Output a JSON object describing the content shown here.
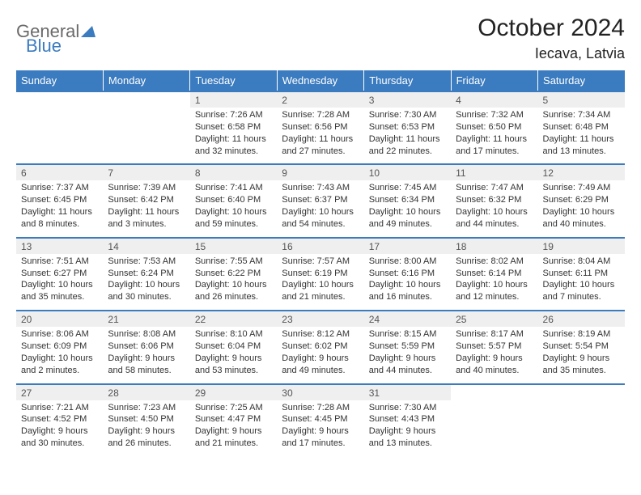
{
  "logo": {
    "text1": "General",
    "text2": "Blue"
  },
  "title": "October 2024",
  "location": "Iecava, Latvia",
  "colors": {
    "header_bg": "#3b7bbf",
    "header_text": "#ffffff",
    "daynum_bg": "#efefef",
    "border": "#3b7bbf",
    "logo_gray": "#6a6a6a",
    "logo_blue": "#3b7bbf"
  },
  "weekdays": [
    "Sunday",
    "Monday",
    "Tuesday",
    "Wednesday",
    "Thursday",
    "Friday",
    "Saturday"
  ],
  "weeks": [
    {
      "nums": [
        "",
        "",
        "1",
        "2",
        "3",
        "4",
        "5"
      ],
      "cells": [
        "",
        "",
        "Sunrise: 7:26 AM\nSunset: 6:58 PM\nDaylight: 11 hours and 32 minutes.",
        "Sunrise: 7:28 AM\nSunset: 6:56 PM\nDaylight: 11 hours and 27 minutes.",
        "Sunrise: 7:30 AM\nSunset: 6:53 PM\nDaylight: 11 hours and 22 minutes.",
        "Sunrise: 7:32 AM\nSunset: 6:50 PM\nDaylight: 11 hours and 17 minutes.",
        "Sunrise: 7:34 AM\nSunset: 6:48 PM\nDaylight: 11 hours and 13 minutes."
      ]
    },
    {
      "nums": [
        "6",
        "7",
        "8",
        "9",
        "10",
        "11",
        "12"
      ],
      "cells": [
        "Sunrise: 7:37 AM\nSunset: 6:45 PM\nDaylight: 11 hours and 8 minutes.",
        "Sunrise: 7:39 AM\nSunset: 6:42 PM\nDaylight: 11 hours and 3 minutes.",
        "Sunrise: 7:41 AM\nSunset: 6:40 PM\nDaylight: 10 hours and 59 minutes.",
        "Sunrise: 7:43 AM\nSunset: 6:37 PM\nDaylight: 10 hours and 54 minutes.",
        "Sunrise: 7:45 AM\nSunset: 6:34 PM\nDaylight: 10 hours and 49 minutes.",
        "Sunrise: 7:47 AM\nSunset: 6:32 PM\nDaylight: 10 hours and 44 minutes.",
        "Sunrise: 7:49 AM\nSunset: 6:29 PM\nDaylight: 10 hours and 40 minutes."
      ]
    },
    {
      "nums": [
        "13",
        "14",
        "15",
        "16",
        "17",
        "18",
        "19"
      ],
      "cells": [
        "Sunrise: 7:51 AM\nSunset: 6:27 PM\nDaylight: 10 hours and 35 minutes.",
        "Sunrise: 7:53 AM\nSunset: 6:24 PM\nDaylight: 10 hours and 30 minutes.",
        "Sunrise: 7:55 AM\nSunset: 6:22 PM\nDaylight: 10 hours and 26 minutes.",
        "Sunrise: 7:57 AM\nSunset: 6:19 PM\nDaylight: 10 hours and 21 minutes.",
        "Sunrise: 8:00 AM\nSunset: 6:16 PM\nDaylight: 10 hours and 16 minutes.",
        "Sunrise: 8:02 AM\nSunset: 6:14 PM\nDaylight: 10 hours and 12 minutes.",
        "Sunrise: 8:04 AM\nSunset: 6:11 PM\nDaylight: 10 hours and 7 minutes."
      ]
    },
    {
      "nums": [
        "20",
        "21",
        "22",
        "23",
        "24",
        "25",
        "26"
      ],
      "cells": [
        "Sunrise: 8:06 AM\nSunset: 6:09 PM\nDaylight: 10 hours and 2 minutes.",
        "Sunrise: 8:08 AM\nSunset: 6:06 PM\nDaylight: 9 hours and 58 minutes.",
        "Sunrise: 8:10 AM\nSunset: 6:04 PM\nDaylight: 9 hours and 53 minutes.",
        "Sunrise: 8:12 AM\nSunset: 6:02 PM\nDaylight: 9 hours and 49 minutes.",
        "Sunrise: 8:15 AM\nSunset: 5:59 PM\nDaylight: 9 hours and 44 minutes.",
        "Sunrise: 8:17 AM\nSunset: 5:57 PM\nDaylight: 9 hours and 40 minutes.",
        "Sunrise: 8:19 AM\nSunset: 5:54 PM\nDaylight: 9 hours and 35 minutes."
      ]
    },
    {
      "nums": [
        "27",
        "28",
        "29",
        "30",
        "31",
        "",
        ""
      ],
      "cells": [
        "Sunrise: 7:21 AM\nSunset: 4:52 PM\nDaylight: 9 hours and 30 minutes.",
        "Sunrise: 7:23 AM\nSunset: 4:50 PM\nDaylight: 9 hours and 26 minutes.",
        "Sunrise: 7:25 AM\nSunset: 4:47 PM\nDaylight: 9 hours and 21 minutes.",
        "Sunrise: 7:28 AM\nSunset: 4:45 PM\nDaylight: 9 hours and 17 minutes.",
        "Sunrise: 7:30 AM\nSunset: 4:43 PM\nDaylight: 9 hours and 13 minutes.",
        "",
        ""
      ]
    }
  ]
}
